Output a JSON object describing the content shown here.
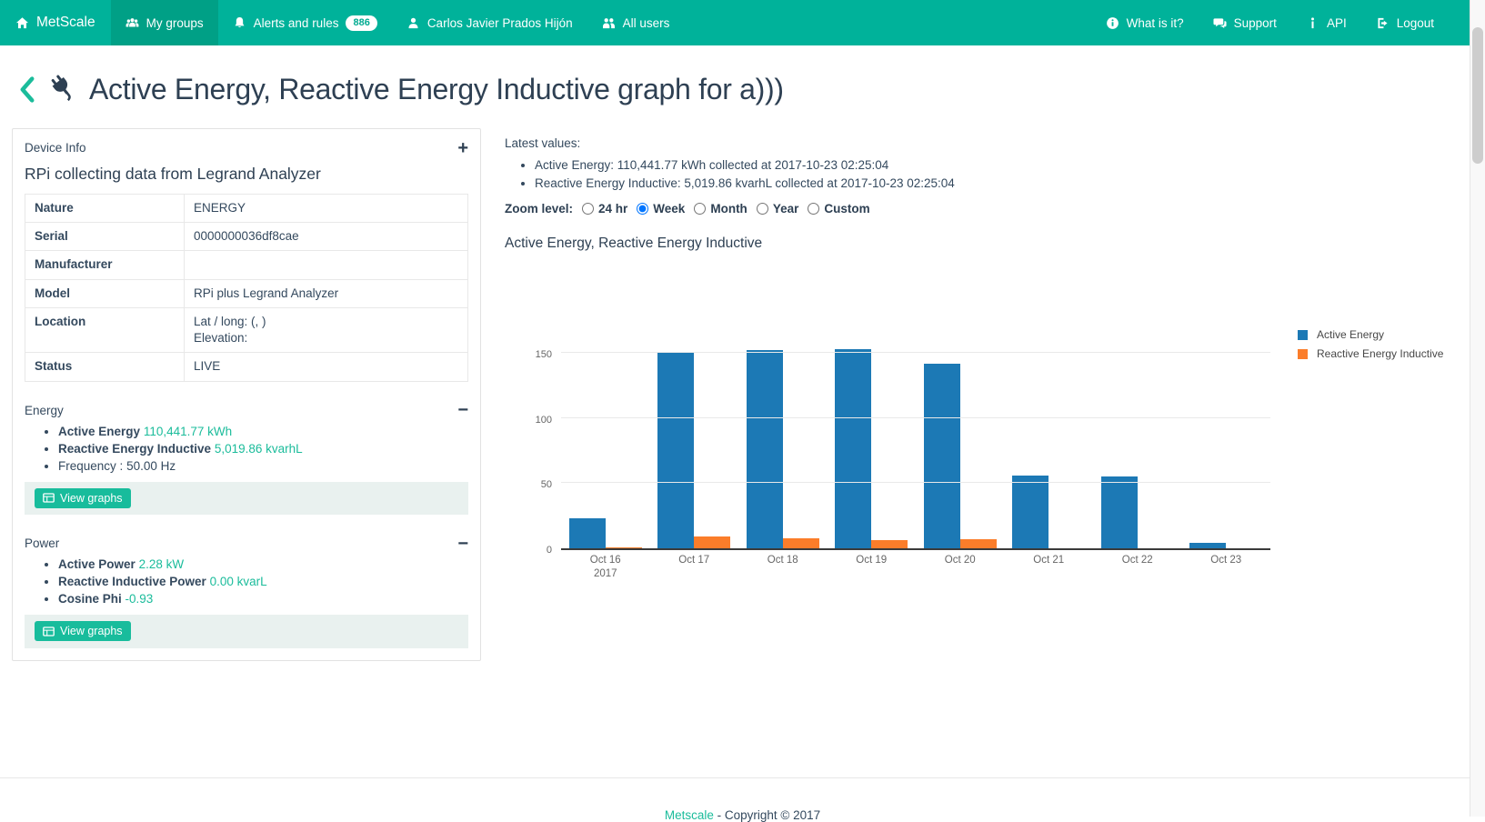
{
  "navbar": {
    "brand": "MetScale",
    "items": [
      {
        "label": "My groups",
        "icon": "users-icon",
        "active": true
      },
      {
        "label": "Alerts and rules",
        "icon": "bell-icon",
        "badge": "886"
      },
      {
        "label": "Carlos Javier Prados Hijón",
        "icon": "user-icon"
      },
      {
        "label": "All users",
        "icon": "people-icon"
      }
    ],
    "right_items": [
      {
        "label": "What is it?",
        "icon": "info-circle-icon"
      },
      {
        "label": "Support",
        "icon": "chat-icon"
      },
      {
        "label": "API",
        "icon": "info-i-icon"
      },
      {
        "label": "Logout",
        "icon": "logout-icon"
      }
    ]
  },
  "page": {
    "title": "Active Energy, Reactive Energy Inductive graph for a)))"
  },
  "device_panel": {
    "header": "Device Info",
    "expand_glyph": "+",
    "collapse_glyph": "−",
    "subtitle": "RPi collecting data from Legrand Analyzer",
    "rows": [
      {
        "label": "Nature",
        "value": "ENERGY"
      },
      {
        "label": "Serial",
        "value": "0000000036df8cae"
      },
      {
        "label": "Manufacturer",
        "value": ""
      },
      {
        "label": "Model",
        "value": "RPi plus Legrand Analyzer"
      },
      {
        "label": "Location",
        "value": "Lat / long: (, )",
        "value2": "Elevation:"
      },
      {
        "label": "Status",
        "value": "LIVE"
      }
    ],
    "sections": [
      {
        "title": "Energy",
        "items": [
          {
            "label": "Active Energy",
            "value": "110,441.77 kWh",
            "bold": true,
            "link": true
          },
          {
            "label": "Reactive Energy Inductive",
            "value": "5,019.86 kvarhL",
            "bold": true,
            "link": true
          },
          {
            "label": "Frequency :",
            "value": "50.00 Hz",
            "bold": false,
            "link": false
          }
        ],
        "button_label": "View graphs"
      },
      {
        "title": "Power",
        "items": [
          {
            "label": "Active Power",
            "value": "2.28 kW",
            "bold": true,
            "link": true
          },
          {
            "label": "Reactive Inductive Power",
            "value": "0.00 kvarL",
            "bold": true,
            "link": true
          },
          {
            "label": "Cosine Phi",
            "value": "-0.93",
            "bold": true,
            "link": true
          }
        ],
        "button_label": "View graphs"
      }
    ]
  },
  "main": {
    "latest_values_label": "Latest values:",
    "latest_values": [
      "Active Energy: 110,441.77 kWh collected at 2017-10-23 02:25:04",
      "Reactive Energy Inductive: 5,019.86 kvarhL collected at 2017-10-23 02:25:04"
    ],
    "zoom_label": "Zoom level:",
    "zoom_options": [
      {
        "label": "24 hr",
        "selected": false
      },
      {
        "label": "Week",
        "selected": true
      },
      {
        "label": "Month",
        "selected": false
      },
      {
        "label": "Year",
        "selected": false
      },
      {
        "label": "Custom",
        "selected": false
      }
    ],
    "chart_title": "Active Energy, Reactive Energy Inductive"
  },
  "chart_data": {
    "type": "bar",
    "title": "Active Energy, Reactive Energy Inductive",
    "categories": [
      "Oct 16",
      "Oct 17",
      "Oct 18",
      "Oct 19",
      "Oct 20",
      "Oct 21",
      "Oct 22",
      "Oct 23"
    ],
    "x_axis_year": "2017",
    "series": [
      {
        "name": "Active Energy",
        "color": "#1c79b5",
        "values": [
          23,
          151,
          152,
          153,
          142,
          56,
          55,
          4
        ]
      },
      {
        "name": "Reactive Energy Inductive",
        "color": "#fb7d2a",
        "values": [
          1,
          9,
          8,
          6,
          7,
          0,
          0,
          0
        ]
      }
    ],
    "ylim": [
      0,
      185
    ],
    "yticks": [
      0,
      50,
      100,
      150
    ],
    "grid": true,
    "legend_position": "right-top"
  },
  "footer": {
    "link_text": "Metscale",
    "copyright_text": " - Copyright © 2017"
  },
  "colors": {
    "navbar": "#00b29a",
    "navbar_active": "#00a086",
    "link": "#1bbc9b",
    "button": "#18bc9c",
    "heading": "#2e4053",
    "bar_blue": "#1c79b5",
    "bar_orange": "#fb7d2a"
  }
}
